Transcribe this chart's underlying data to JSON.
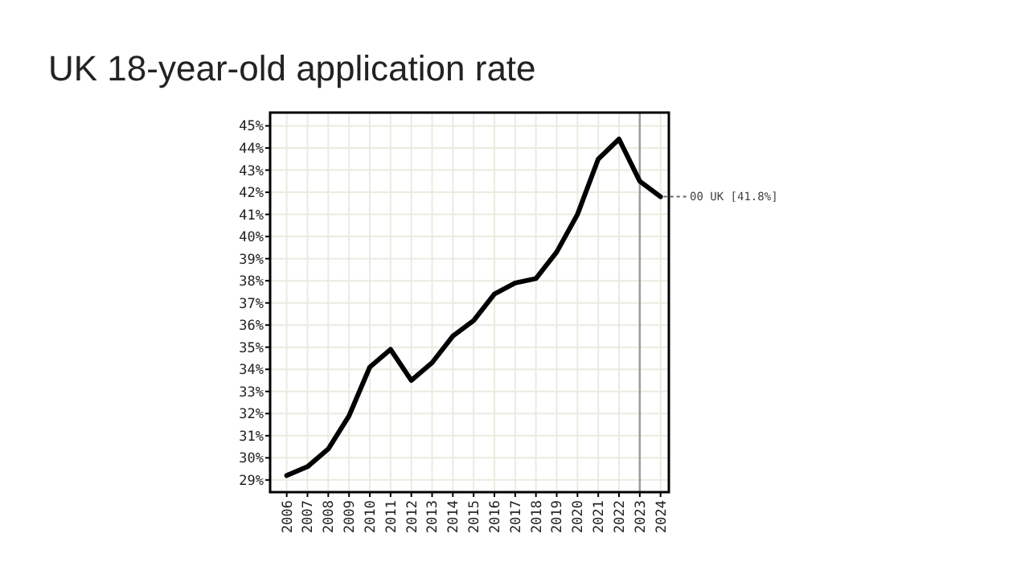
{
  "chart_data": {
    "type": "line",
    "title": "UK 18-year-old application rate",
    "x": [
      2006,
      2007,
      2008,
      2009,
      2010,
      2011,
      2012,
      2013,
      2014,
      2015,
      2016,
      2017,
      2018,
      2019,
      2020,
      2021,
      2022,
      2023,
      2024
    ],
    "series": [
      {
        "color": "#000000",
        "values": [
          29.2,
          29.6,
          30.4,
          31.9,
          34.1,
          34.9,
          33.5,
          34.3,
          35.5,
          36.2,
          37.4,
          37.9,
          38.1,
          39.3,
          41.0,
          43.5,
          44.4,
          42.5,
          41.8
        ]
      }
    ],
    "xlim": [
      2005.2,
      2024.4
    ],
    "xticks": [
      2006,
      2007,
      2008,
      2009,
      2010,
      2011,
      2012,
      2013,
      2014,
      2015,
      2016,
      2017,
      2018,
      2019,
      2020,
      2021,
      2022,
      2023,
      2024
    ],
    "ylim": [
      28.45,
      45.6
    ],
    "yticks": [
      {
        "value": 29,
        "label": "29%"
      },
      {
        "value": 30,
        "label": "30%"
      },
      {
        "value": 31,
        "label": "31%"
      },
      {
        "value": 32,
        "label": "32%"
      },
      {
        "value": 33,
        "label": "33%"
      },
      {
        "value": 34,
        "label": "34%"
      },
      {
        "value": 35,
        "label": "35%"
      },
      {
        "value": 36,
        "label": "36%"
      },
      {
        "value": 37,
        "label": "37%"
      },
      {
        "value": 38,
        "label": "38%"
      },
      {
        "value": 39,
        "label": "39%"
      },
      {
        "value": 40,
        "label": "40%"
      },
      {
        "value": 41,
        "label": "41%"
      },
      {
        "value": 42,
        "label": "42%"
      },
      {
        "value": 43,
        "label": "43%"
      },
      {
        "value": 44,
        "label": "44%"
      },
      {
        "value": 45,
        "label": "45%"
      }
    ],
    "ref_lines": [
      {
        "axis": "x",
        "value": 2023,
        "color": "#999999"
      }
    ],
    "annotations": [
      {
        "text": "00 UK [41.8%]",
        "x": 2024,
        "y": 41.8
      }
    ],
    "grid": true,
    "marker": "none",
    "line_style": "solid"
  }
}
